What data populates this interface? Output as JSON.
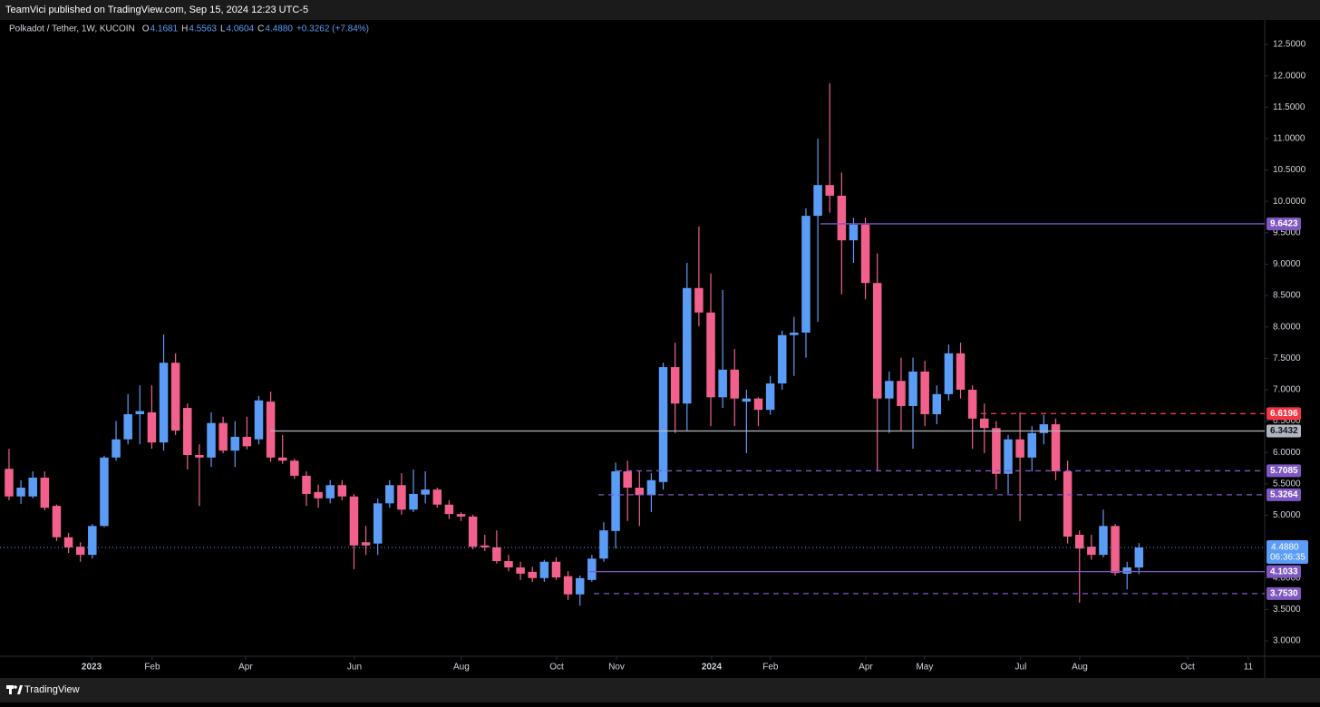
{
  "header": {
    "published": "TeamVici published on TradingView.com, Sep 15, 2024 12:23 UTC-5",
    "symbol": "Polkadot / Tether, 1W, KUCOIN",
    "o": "O",
    "h": "H",
    "l": "L",
    "c": "C",
    "change": "+0.3262 (+7.84%)"
  },
  "chart_data": {
    "type": "candlestick",
    "up_color": "#5b9cf6",
    "down_color": "#f2608c",
    "candles": [
      {
        "o": 5.74,
        "h": 6.06,
        "l": 5.24,
        "c": 5.3
      },
      {
        "o": 5.3,
        "h": 5.56,
        "l": 5.18,
        "c": 5.44
      },
      {
        "o": 5.3,
        "h": 5.7,
        "l": 5.27,
        "c": 5.6
      },
      {
        "o": 5.6,
        "h": 5.7,
        "l": 5.08,
        "c": 5.12
      },
      {
        "o": 5.15,
        "h": 5.17,
        "l": 4.59,
        "c": 4.65
      },
      {
        "o": 4.65,
        "h": 4.72,
        "l": 4.4,
        "c": 4.49
      },
      {
        "o": 4.5,
        "h": 4.57,
        "l": 4.26,
        "c": 4.37
      },
      {
        "o": 4.37,
        "h": 4.86,
        "l": 4.31,
        "c": 4.83
      },
      {
        "o": 4.83,
        "h": 5.95,
        "l": 4.81,
        "c": 5.92
      },
      {
        "o": 5.92,
        "h": 6.5,
        "l": 5.87,
        "c": 6.21
      },
      {
        "o": 6.21,
        "h": 6.93,
        "l": 6.13,
        "c": 6.61
      },
      {
        "o": 6.61,
        "h": 7.07,
        "l": 6.13,
        "c": 6.66
      },
      {
        "o": 6.64,
        "h": 7.07,
        "l": 6.06,
        "c": 6.16
      },
      {
        "o": 6.16,
        "h": 7.88,
        "l": 6.03,
        "c": 7.43
      },
      {
        "o": 7.43,
        "h": 7.58,
        "l": 6.28,
        "c": 6.35
      },
      {
        "o": 6.71,
        "h": 6.78,
        "l": 5.73,
        "c": 5.96
      },
      {
        "o": 5.96,
        "h": 6.13,
        "l": 5.15,
        "c": 5.92
      },
      {
        "o": 5.92,
        "h": 6.64,
        "l": 5.77,
        "c": 6.47
      },
      {
        "o": 6.47,
        "h": 6.57,
        "l": 5.99,
        "c": 6.03
      },
      {
        "o": 6.03,
        "h": 6.5,
        "l": 5.77,
        "c": 6.25
      },
      {
        "o": 6.25,
        "h": 6.57,
        "l": 6.05,
        "c": 6.1
      },
      {
        "o": 6.21,
        "h": 6.9,
        "l": 6.13,
        "c": 6.83
      },
      {
        "o": 6.81,
        "h": 6.97,
        "l": 5.85,
        "c": 5.92
      },
      {
        "o": 5.92,
        "h": 6.28,
        "l": 5.82,
        "c": 5.87
      },
      {
        "o": 5.87,
        "h": 5.9,
        "l": 5.58,
        "c": 5.63
      },
      {
        "o": 5.63,
        "h": 5.7,
        "l": 5.15,
        "c": 5.34
      },
      {
        "o": 5.37,
        "h": 5.49,
        "l": 5.12,
        "c": 5.27
      },
      {
        "o": 5.27,
        "h": 5.56,
        "l": 5.19,
        "c": 5.48
      },
      {
        "o": 5.48,
        "h": 5.56,
        "l": 5.24,
        "c": 5.3
      },
      {
        "o": 5.3,
        "h": 5.34,
        "l": 4.14,
        "c": 4.52
      },
      {
        "o": 4.57,
        "h": 4.83,
        "l": 4.37,
        "c": 4.52
      },
      {
        "o": 4.55,
        "h": 5.27,
        "l": 4.37,
        "c": 5.19
      },
      {
        "o": 5.19,
        "h": 5.56,
        "l": 5.12,
        "c": 5.48
      },
      {
        "o": 5.48,
        "h": 5.67,
        "l": 5.01,
        "c": 5.09
      },
      {
        "o": 5.09,
        "h": 5.73,
        "l": 5.05,
        "c": 5.34
      },
      {
        "o": 5.33,
        "h": 5.7,
        "l": 5.19,
        "c": 5.41
      },
      {
        "o": 5.41,
        "h": 5.44,
        "l": 5.12,
        "c": 5.17
      },
      {
        "o": 5.17,
        "h": 5.24,
        "l": 4.94,
        "c": 5.02
      },
      {
        "o": 5.02,
        "h": 5.05,
        "l": 4.91,
        "c": 4.98
      },
      {
        "o": 4.98,
        "h": 5.01,
        "l": 4.46,
        "c": 4.5
      },
      {
        "o": 4.52,
        "h": 4.69,
        "l": 4.43,
        "c": 4.49
      },
      {
        "o": 4.49,
        "h": 4.76,
        "l": 4.23,
        "c": 4.27
      },
      {
        "o": 4.27,
        "h": 4.37,
        "l": 4.11,
        "c": 4.17
      },
      {
        "o": 4.17,
        "h": 4.26,
        "l": 3.97,
        "c": 4.07
      },
      {
        "o": 4.1,
        "h": 4.18,
        "l": 3.94,
        "c": 4.0
      },
      {
        "o": 4.0,
        "h": 4.29,
        "l": 3.94,
        "c": 4.26
      },
      {
        "o": 4.26,
        "h": 4.33,
        "l": 3.97,
        "c": 4.01
      },
      {
        "o": 4.03,
        "h": 4.11,
        "l": 3.65,
        "c": 3.74
      },
      {
        "o": 3.74,
        "h": 4.04,
        "l": 3.56,
        "c": 4.0
      },
      {
        "o": 3.97,
        "h": 4.37,
        "l": 3.94,
        "c": 4.31
      },
      {
        "o": 4.31,
        "h": 4.89,
        "l": 4.26,
        "c": 4.76
      },
      {
        "o": 4.75,
        "h": 5.84,
        "l": 4.47,
        "c": 5.7
      },
      {
        "o": 5.7,
        "h": 5.87,
        "l": 4.91,
        "c": 5.44
      },
      {
        "o": 5.44,
        "h": 5.7,
        "l": 4.83,
        "c": 5.32
      },
      {
        "o": 5.32,
        "h": 5.67,
        "l": 5.05,
        "c": 5.56
      },
      {
        "o": 5.53,
        "h": 7.43,
        "l": 5.41,
        "c": 7.36
      },
      {
        "o": 7.36,
        "h": 7.75,
        "l": 6.31,
        "c": 6.78
      },
      {
        "o": 6.78,
        "h": 9.02,
        "l": 6.35,
        "c": 8.62
      },
      {
        "o": 8.62,
        "h": 9.6,
        "l": 8.01,
        "c": 8.23
      },
      {
        "o": 8.23,
        "h": 8.85,
        "l": 6.42,
        "c": 6.88
      },
      {
        "o": 6.88,
        "h": 8.59,
        "l": 6.71,
        "c": 7.32
      },
      {
        "o": 7.32,
        "h": 7.65,
        "l": 6.42,
        "c": 6.86
      },
      {
        "o": 6.81,
        "h": 7.0,
        "l": 5.99,
        "c": 6.86
      },
      {
        "o": 6.86,
        "h": 6.88,
        "l": 6.42,
        "c": 6.68
      },
      {
        "o": 6.68,
        "h": 7.22,
        "l": 6.6,
        "c": 7.1
      },
      {
        "o": 7.1,
        "h": 7.94,
        "l": 7.0,
        "c": 7.87
      },
      {
        "o": 7.87,
        "h": 8.16,
        "l": 7.22,
        "c": 7.91
      },
      {
        "o": 7.91,
        "h": 9.89,
        "l": 7.51,
        "c": 9.77
      },
      {
        "o": 9.77,
        "h": 11.0,
        "l": 8.08,
        "c": 10.26
      },
      {
        "o": 10.26,
        "h": 11.88,
        "l": 9.82,
        "c": 10.09
      },
      {
        "o": 10.09,
        "h": 10.46,
        "l": 8.52,
        "c": 9.38
      },
      {
        "o": 9.38,
        "h": 9.74,
        "l": 9.02,
        "c": 9.63
      },
      {
        "o": 9.63,
        "h": 9.74,
        "l": 8.44,
        "c": 8.7
      },
      {
        "o": 8.7,
        "h": 9.17,
        "l": 5.7,
        "c": 6.86
      },
      {
        "o": 6.86,
        "h": 7.29,
        "l": 6.31,
        "c": 7.14
      },
      {
        "o": 7.14,
        "h": 7.51,
        "l": 6.35,
        "c": 6.74
      },
      {
        "o": 6.74,
        "h": 7.51,
        "l": 6.06,
        "c": 7.29
      },
      {
        "o": 7.29,
        "h": 7.46,
        "l": 6.42,
        "c": 6.61
      },
      {
        "o": 6.61,
        "h": 7.07,
        "l": 6.45,
        "c": 6.93
      },
      {
        "o": 6.93,
        "h": 7.72,
        "l": 6.83,
        "c": 7.58
      },
      {
        "o": 7.58,
        "h": 7.75,
        "l": 6.86,
        "c": 7.0
      },
      {
        "o": 7.0,
        "h": 7.07,
        "l": 6.06,
        "c": 6.54
      },
      {
        "o": 6.54,
        "h": 6.78,
        "l": 5.99,
        "c": 6.39
      },
      {
        "o": 6.39,
        "h": 6.5,
        "l": 5.41,
        "c": 5.66
      },
      {
        "o": 5.66,
        "h": 6.28,
        "l": 5.34,
        "c": 6.21
      },
      {
        "o": 6.21,
        "h": 6.64,
        "l": 4.91,
        "c": 5.92
      },
      {
        "o": 5.92,
        "h": 6.42,
        "l": 5.7,
        "c": 6.31
      },
      {
        "o": 6.31,
        "h": 6.6,
        "l": 6.13,
        "c": 6.45
      },
      {
        "o": 6.45,
        "h": 6.54,
        "l": 5.56,
        "c": 5.7
      },
      {
        "o": 5.7,
        "h": 5.87,
        "l": 4.55,
        "c": 4.66
      },
      {
        "o": 4.69,
        "h": 4.76,
        "l": 3.61,
        "c": 4.47
      },
      {
        "o": 4.5,
        "h": 4.69,
        "l": 4.29,
        "c": 4.37
      },
      {
        "o": 4.37,
        "h": 5.09,
        "l": 4.33,
        "c": 4.83
      },
      {
        "o": 4.83,
        "h": 4.86,
        "l": 4.04,
        "c": 4.08
      },
      {
        "o": 4.07,
        "h": 4.26,
        "l": 3.82,
        "c": 4.17
      },
      {
        "o": 4.1681,
        "h": 4.5563,
        "l": 4.0604,
        "c": 4.488
      }
    ],
    "xlim": [
      -0.76,
      105.57
    ],
    "xticks": [
      {
        "value": 6.94,
        "label": "2023"
      },
      {
        "value": 12.04,
        "label": "Feb"
      },
      {
        "value": 19.89,
        "label": "Apr"
      },
      {
        "value": 29.04,
        "label": "Jun"
      },
      {
        "value": 38.03,
        "label": "Aug"
      },
      {
        "value": 46.04,
        "label": "Oct"
      },
      {
        "value": 51.07,
        "label": "Nov"
      },
      {
        "value": 59.07,
        "label": "2024"
      },
      {
        "value": 64.02,
        "label": "Feb"
      },
      {
        "value": 72.03,
        "label": "Apr"
      },
      {
        "value": 76.98,
        "label": "May"
      },
      {
        "value": 85.06,
        "label": "Jul"
      },
      {
        "value": 90.02,
        "label": "Aug"
      },
      {
        "value": 99.09,
        "label": "Oct"
      },
      {
        "value": 104.19,
        "label": "11"
      }
    ],
    "ylim": [
      2.755,
      12.89
    ],
    "yticks": [
      {
        "value": 3,
        "label": "3.0000"
      },
      {
        "value": 3.5,
        "label": "3.5000"
      },
      {
        "value": 4,
        "label": "4.0000"
      },
      {
        "value": 5,
        "label": "5.0000"
      },
      {
        "value": 5.5,
        "label": "5.5000"
      },
      {
        "value": 6,
        "label": "6.0000"
      },
      {
        "value": 6.5,
        "label": "6.5000"
      },
      {
        "value": 7,
        "label": "7.0000"
      },
      {
        "value": 7.5,
        "label": "7.5000"
      },
      {
        "value": 8,
        "label": "8.0000"
      },
      {
        "value": 8.5,
        "label": "8.5000"
      },
      {
        "value": 9,
        "label": "9.0000"
      },
      {
        "value": 9.5,
        "label": "9.5000"
      },
      {
        "value": 10,
        "label": "10.0000"
      },
      {
        "value": 10.5,
        "label": "10.5000"
      },
      {
        "value": 11,
        "label": "11.0000"
      },
      {
        "value": 11.5,
        "label": "11.5000"
      },
      {
        "value": 12,
        "label": "12.0000"
      },
      {
        "value": 12.5,
        "label": "12.5000"
      }
    ],
    "levels": [
      {
        "value": 9.6423,
        "color": "#7e57c2",
        "style": "solid"
      },
      {
        "value": 6.6196,
        "color": "#f23645",
        "style": "dashed"
      },
      {
        "value": 6.3432,
        "color": "#b2b5be",
        "style": "solid"
      },
      {
        "value": 5.7085,
        "color": "#7e57c2",
        "style": "dashed"
      },
      {
        "value": 5.3264,
        "color": "#7e57c2",
        "style": "dashed"
      },
      {
        "value": 4.1033,
        "color": "#7e57c2",
        "style": "solid"
      },
      {
        "value": 3.753,
        "label": "3.7530",
        "color": "#7e57c2",
        "style": "dashed"
      }
    ],
    "last_price": {
      "value": 4.488,
      "label": "4.4880",
      "countdown": "06:36:35"
    }
  },
  "footer": {
    "brand": "TradingView"
  }
}
